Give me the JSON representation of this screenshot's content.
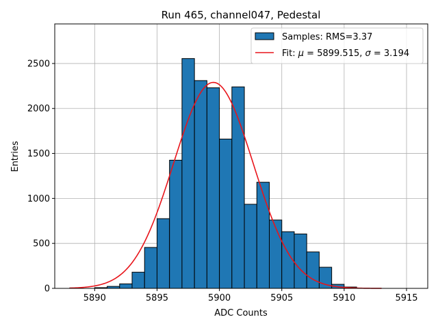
{
  "chart_data": {
    "type": "bar",
    "title": "Run 465, channel047, Pedestal",
    "xlabel": "ADC Counts",
    "ylabel": "Entries",
    "xlim": [
      5886.8,
      5916.7
    ],
    "ylim": [
      0,
      2940
    ],
    "xticks": [
      5890,
      5895,
      5900,
      5905,
      5910,
      5915
    ],
    "yticks": [
      0,
      500,
      1000,
      1500,
      2000,
      2500
    ],
    "grid": true,
    "legend_position": "top-right",
    "colors": {
      "bar_fill": "#1f77b4",
      "bar_edge": "#000000",
      "fit_line": "#e8141a"
    },
    "histogram": {
      "name": "Samples: RMS=3.37",
      "bin_edges": [
        5888,
        5889,
        5890,
        5891,
        5892,
        5893,
        5894,
        5895,
        5896,
        5897,
        5898,
        5899,
        5900,
        5901,
        5902,
        5903,
        5904,
        5905,
        5906,
        5907,
        5908,
        5909,
        5910,
        5911,
        5912,
        5913
      ],
      "counts": [
        5,
        0,
        8,
        22,
        50,
        180,
        455,
        775,
        1425,
        2555,
        2310,
        2230,
        1660,
        2240,
        935,
        1180,
        760,
        630,
        605,
        405,
        235,
        45,
        15,
        3,
        0
      ]
    },
    "fit": {
      "name_prefix": "Fit: ",
      "mu_symbol": "μ",
      "mu_value": " = 5899.515, ",
      "sigma_symbol": "σ",
      "sigma_value": " = 3.194",
      "mu": 5899.515,
      "sigma": 3.194,
      "amplitude": 2290,
      "x_range": [
        5888,
        5913
      ]
    }
  }
}
